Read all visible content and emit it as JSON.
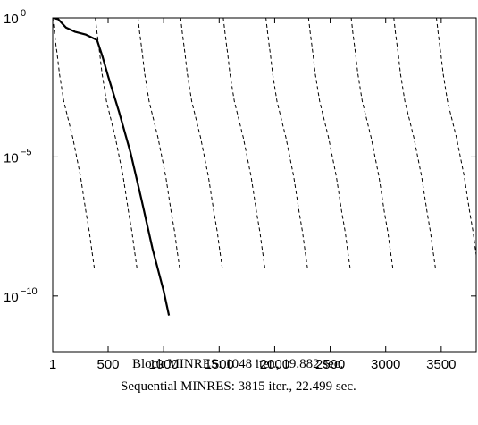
{
  "chart_data": {
    "type": "line",
    "title": "",
    "xlabel": "",
    "ylabel": "",
    "xscale": "linear",
    "yscale": "log",
    "xlim": [
      1,
      3815
    ],
    "ylim": [
      1e-12,
      1
    ],
    "x_ticks": [
      1,
      500,
      1000,
      1500,
      2000,
      2500,
      3000,
      3500
    ],
    "x_tick_labels": [
      "1",
      "500",
      "1000",
      "1500",
      "2000",
      "2500",
      "3000",
      "3500"
    ],
    "y_ticks": [
      1,
      1e-05,
      1e-10
    ],
    "y_tick_labels": [
      {
        "base": "10",
        "exp": "0"
      },
      {
        "base": "10",
        "exp": "−5"
      },
      {
        "base": "10",
        "exp": "−10"
      }
    ],
    "grid": false,
    "legend": "none",
    "series": [
      {
        "style": "solid",
        "x": [
          1,
          50,
          120,
          200,
          300,
          400,
          450,
          500,
          600,
          700,
          800,
          900,
          1000,
          1048
        ],
        "y": [
          1,
          0.9,
          0.45,
          0.32,
          0.25,
          0.16,
          0.04,
          0.008,
          0.0004,
          1.5e-05,
          3e-07,
          5e-09,
          1.5e-10,
          2e-11
        ]
      }
    ],
    "restarts": {
      "style": "dashed",
      "count": 10,
      "start_x": [
        1,
        385,
        769,
        1153,
        1537,
        1921,
        2305,
        2689,
        3073,
        3457
      ],
      "start_y": 1,
      "end_y": 1e-09,
      "profile_x": [
        0,
        15,
        30,
        40,
        60,
        100,
        180,
        250,
        300,
        330,
        350,
        375
      ],
      "profile_y": [
        1,
        0.3,
        0.1,
        0.05,
        0.01,
        0.001,
        5e-05,
        2e-06,
        1e-07,
        2e-08,
        5e-09,
        1e-09
      ]
    }
  },
  "caption": {
    "line1": "Block MINRES: 1048 iter., 19.882 sec.",
    "line2": "Sequential MINRES: 3815 iter., 22.499 sec."
  }
}
